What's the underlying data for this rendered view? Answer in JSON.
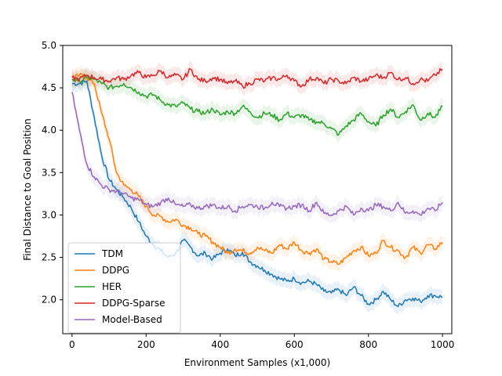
{
  "chart_data": {
    "type": "line",
    "title": "",
    "xlabel": "Environment Samples (x1,000)",
    "ylabel": "Final Distance to Goal Position",
    "xlim": [
      -25,
      1025
    ],
    "ylim": [
      1.6,
      5.0
    ],
    "xticks": [
      0,
      200,
      400,
      600,
      800,
      1000
    ],
    "xtick_labels": [
      "0",
      "200",
      "400",
      "600",
      "800",
      "1000"
    ],
    "yticks": [
      2.0,
      2.5,
      3.0,
      3.5,
      4.0,
      4.5,
      5.0
    ],
    "ytick_labels": [
      "2.0",
      "2.5",
      "3.0",
      "3.5",
      "4.0",
      "4.5",
      "5.0"
    ],
    "grid": false,
    "legend_position": "lower-left",
    "shaded_confidence_bands": true,
    "series": [
      {
        "name": "TDM",
        "color": "#1f77b4",
        "x": [
          0,
          20,
          40,
          60,
          80,
          100,
          120,
          140,
          160,
          180,
          200,
          220,
          240,
          260,
          280,
          300,
          320,
          340,
          360,
          380,
          400,
          420,
          440,
          460,
          480,
          500,
          520,
          540,
          560,
          580,
          600,
          620,
          640,
          660,
          680,
          700,
          720,
          740,
          760,
          780,
          800,
          820,
          840,
          860,
          880,
          900,
          920,
          940,
          960,
          980,
          1000
        ],
        "y": [
          4.55,
          4.55,
          4.58,
          4.15,
          3.7,
          3.42,
          3.3,
          3.2,
          3.08,
          2.92,
          2.75,
          2.65,
          2.58,
          2.5,
          2.55,
          2.7,
          2.62,
          2.52,
          2.55,
          2.48,
          2.55,
          2.6,
          2.52,
          2.56,
          2.45,
          2.4,
          2.35,
          2.3,
          2.25,
          2.22,
          2.25,
          2.2,
          2.22,
          2.18,
          2.1,
          2.08,
          2.12,
          2.05,
          2.15,
          2.05,
          1.95,
          2.0,
          2.1,
          2.0,
          1.92,
          2.0,
          2.02,
          1.98,
          2.05,
          2.05,
          2.03
        ]
      },
      {
        "name": "DDPG",
        "color": "#ff7f0e",
        "x": [
          0,
          20,
          40,
          60,
          80,
          100,
          120,
          140,
          160,
          180,
          200,
          220,
          240,
          260,
          280,
          300,
          320,
          340,
          360,
          380,
          400,
          420,
          440,
          460,
          480,
          500,
          520,
          540,
          560,
          580,
          600,
          620,
          640,
          660,
          680,
          700,
          720,
          740,
          760,
          780,
          800,
          820,
          840,
          860,
          880,
          900,
          920,
          940,
          960,
          980,
          1000
        ],
        "y": [
          4.6,
          4.65,
          4.62,
          4.55,
          4.2,
          3.9,
          3.5,
          3.35,
          3.3,
          3.22,
          3.1,
          3.0,
          2.98,
          2.92,
          2.95,
          2.88,
          2.85,
          2.78,
          2.75,
          2.68,
          2.62,
          2.55,
          2.6,
          2.58,
          2.55,
          2.62,
          2.58,
          2.55,
          2.65,
          2.6,
          2.68,
          2.58,
          2.55,
          2.6,
          2.48,
          2.45,
          2.42,
          2.5,
          2.58,
          2.62,
          2.52,
          2.55,
          2.7,
          2.62,
          2.58,
          2.5,
          2.62,
          2.55,
          2.65,
          2.6,
          2.68
        ]
      },
      {
        "name": "HER",
        "color": "#2ca02c",
        "x": [
          0,
          20,
          40,
          60,
          80,
          100,
          120,
          140,
          160,
          180,
          200,
          220,
          240,
          260,
          280,
          300,
          320,
          340,
          360,
          380,
          400,
          420,
          440,
          460,
          480,
          500,
          520,
          540,
          560,
          580,
          600,
          620,
          640,
          660,
          680,
          700,
          720,
          740,
          760,
          780,
          800,
          820,
          840,
          860,
          880,
          900,
          920,
          940,
          960,
          980,
          1000
        ],
        "y": [
          4.6,
          4.58,
          4.62,
          4.6,
          4.55,
          4.5,
          4.52,
          4.55,
          4.5,
          4.45,
          4.4,
          4.42,
          4.35,
          4.3,
          4.28,
          4.32,
          4.25,
          4.22,
          4.2,
          4.25,
          4.18,
          4.22,
          4.2,
          4.28,
          4.22,
          4.15,
          4.2,
          4.18,
          4.12,
          4.2,
          4.15,
          4.18,
          4.12,
          4.1,
          4.08,
          4.02,
          3.95,
          4.05,
          4.12,
          4.2,
          4.1,
          4.05,
          4.18,
          4.25,
          4.15,
          4.22,
          4.3,
          4.12,
          4.2,
          4.15,
          4.28
        ]
      },
      {
        "name": "DDPG-Sparse",
        "color": "#d62728",
        "x": [
          0,
          20,
          40,
          60,
          80,
          100,
          120,
          140,
          160,
          180,
          200,
          220,
          240,
          260,
          280,
          300,
          320,
          340,
          360,
          380,
          400,
          420,
          440,
          460,
          480,
          500,
          520,
          540,
          560,
          580,
          600,
          620,
          640,
          660,
          680,
          700,
          720,
          740,
          760,
          780,
          800,
          820,
          840,
          860,
          880,
          900,
          920,
          940,
          960,
          980,
          1000
        ],
        "y": [
          4.62,
          4.6,
          4.65,
          4.62,
          4.6,
          4.58,
          4.62,
          4.6,
          4.65,
          4.68,
          4.62,
          4.65,
          4.7,
          4.62,
          4.65,
          4.6,
          4.72,
          4.6,
          4.58,
          4.62,
          4.6,
          4.55,
          4.58,
          4.52,
          4.55,
          4.6,
          4.58,
          4.62,
          4.6,
          4.65,
          4.58,
          4.52,
          4.6,
          4.62,
          4.55,
          4.6,
          4.58,
          4.55,
          4.62,
          4.58,
          4.6,
          4.65,
          4.62,
          4.68,
          4.6,
          4.62,
          4.55,
          4.6,
          4.58,
          4.65,
          4.72
        ]
      },
      {
        "name": "Model-Based",
        "color": "#9467bd",
        "x": [
          0,
          20,
          40,
          60,
          80,
          100,
          120,
          140,
          160,
          180,
          200,
          220,
          240,
          260,
          280,
          300,
          320,
          340,
          360,
          380,
          400,
          420,
          440,
          460,
          480,
          500,
          520,
          540,
          560,
          580,
          600,
          620,
          640,
          660,
          680,
          700,
          720,
          740,
          760,
          780,
          800,
          820,
          840,
          860,
          880,
          900,
          920,
          940,
          960,
          980,
          1000
        ],
        "y": [
          4.45,
          4.0,
          3.6,
          3.45,
          3.35,
          3.3,
          3.28,
          3.25,
          3.2,
          3.18,
          3.12,
          3.1,
          3.15,
          3.2,
          3.12,
          3.1,
          3.12,
          3.08,
          3.1,
          3.12,
          3.08,
          3.1,
          3.05,
          3.1,
          3.12,
          3.1,
          3.08,
          3.15,
          3.1,
          3.08,
          3.1,
          3.12,
          3.05,
          3.15,
          3.02,
          3.0,
          3.05,
          3.1,
          3.0,
          3.08,
          3.05,
          3.12,
          3.1,
          3.05,
          3.15,
          3.02,
          3.05,
          3.0,
          3.08,
          3.05,
          3.15
        ]
      }
    ]
  }
}
